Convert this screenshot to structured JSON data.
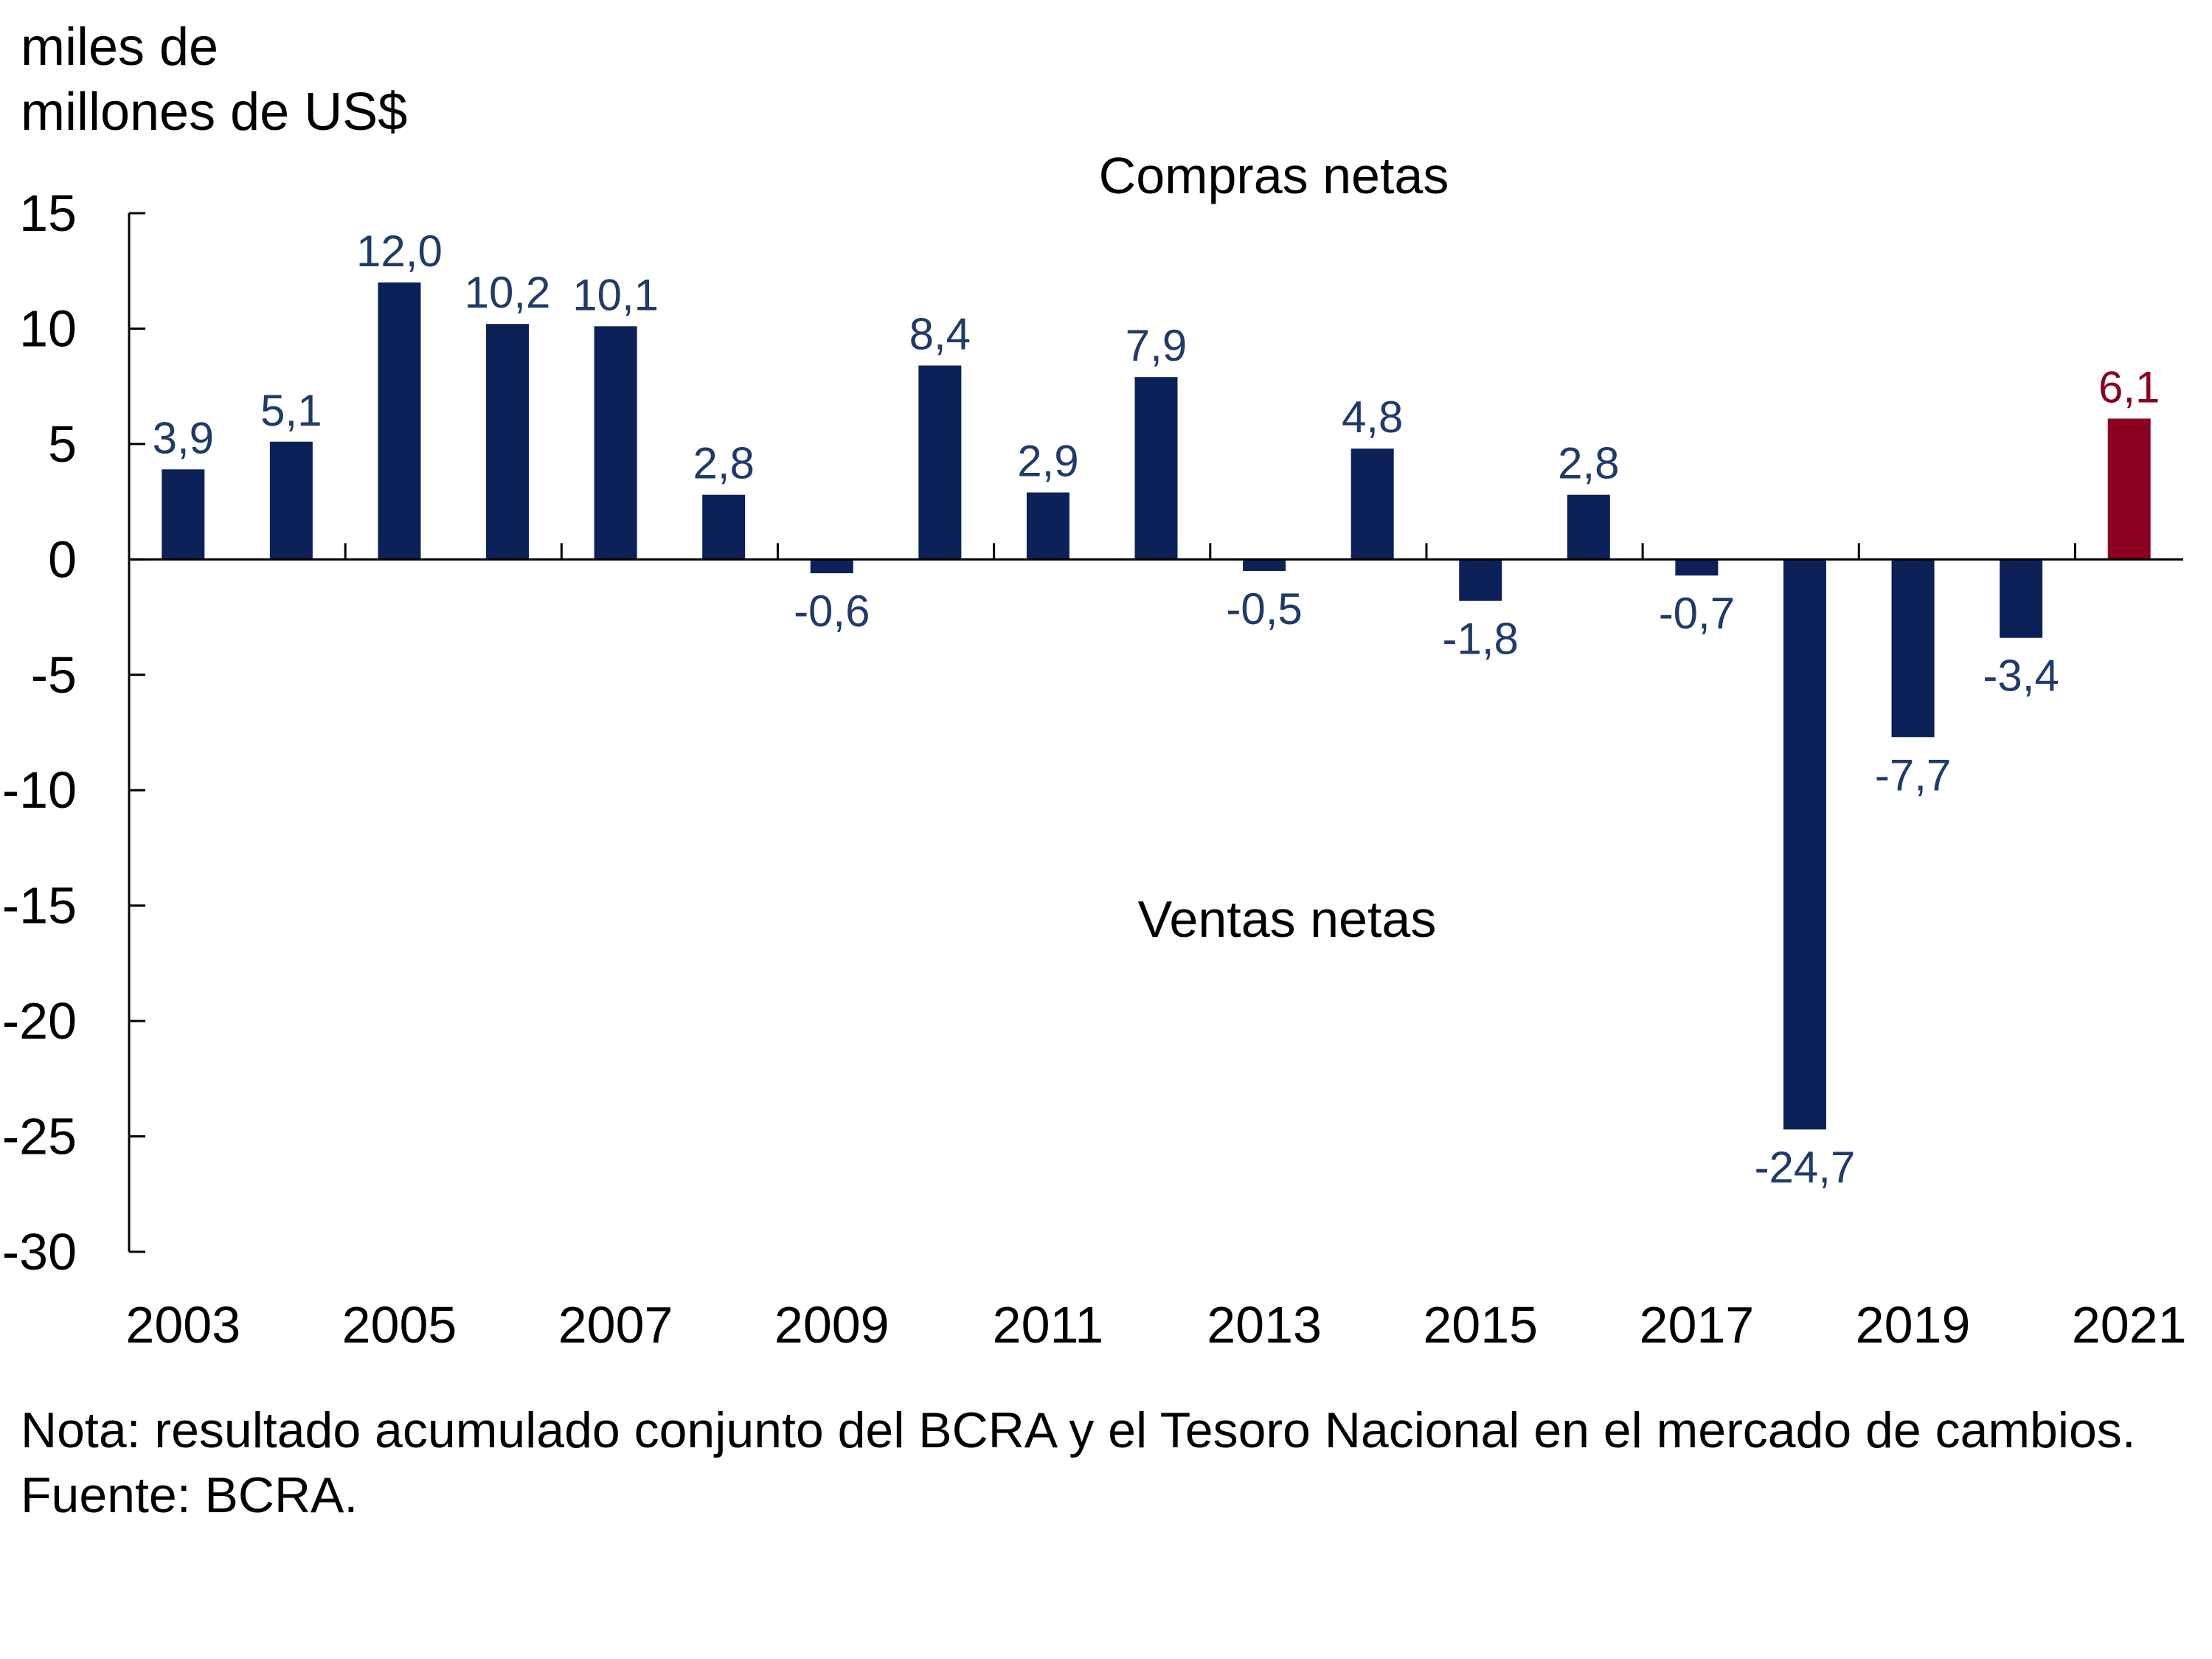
{
  "unit_label_line1": "miles de",
  "unit_label_line2": "millones de US$",
  "annotations": {
    "top": "Compras netas",
    "bottom": "Ventas netas"
  },
  "notes": {
    "nota": "Nota: resultado acumulado conjunto del BCRA y el Tesoro Nacional en el mercado de cambios.",
    "fuente": "Fuente: BCRA."
  },
  "colors": {
    "bar": "#0b2158",
    "highlight_bar": "#8b0020",
    "label": "#1f3a6b",
    "highlight_label": "#8b0020",
    "axis": "#000000"
  },
  "chart_data": {
    "type": "bar",
    "title": "",
    "xlabel": "",
    "ylabel": "miles de millones de US$",
    "categories": [
      "2003",
      "2004",
      "2005",
      "2006",
      "2007",
      "2008",
      "2009",
      "2010",
      "2011",
      "2012",
      "2013",
      "2014",
      "2015",
      "2016",
      "2017",
      "2018",
      "2019",
      "2020",
      "2021"
    ],
    "values": [
      3.9,
      5.1,
      12.0,
      10.2,
      10.1,
      2.8,
      -0.6,
      8.4,
      2.9,
      7.9,
      -0.5,
      4.8,
      -1.8,
      2.8,
      -0.7,
      -24.7,
      -7.7,
      -3.4,
      6.1
    ],
    "data_labels": [
      "3,9",
      "5,1",
      "12,0",
      "10,2",
      "10,1",
      "2,8",
      "-0,6",
      "8,4",
      "2,9",
      "7,9",
      "-0,5",
      "4,8",
      "-1,8",
      "2,8",
      "-0,7",
      "-24,7",
      "-7,7",
      "-3,4",
      "6,1"
    ],
    "highlight_index": 18,
    "x_tick_labels": [
      "2003",
      "2005",
      "2007",
      "2009",
      "2011",
      "2013",
      "2015",
      "2017",
      "2019",
      "2021"
    ],
    "y_ticks": [
      15,
      10,
      5,
      0,
      -5,
      -10,
      -15,
      -20,
      -25,
      -30
    ],
    "y_tick_labels": [
      "15",
      "10",
      "5",
      "0",
      "-5",
      "-10",
      "-15",
      "-20",
      "-25",
      "-30"
    ],
    "ylim": [
      -30,
      15
    ],
    "grid": false,
    "legend": "none"
  }
}
